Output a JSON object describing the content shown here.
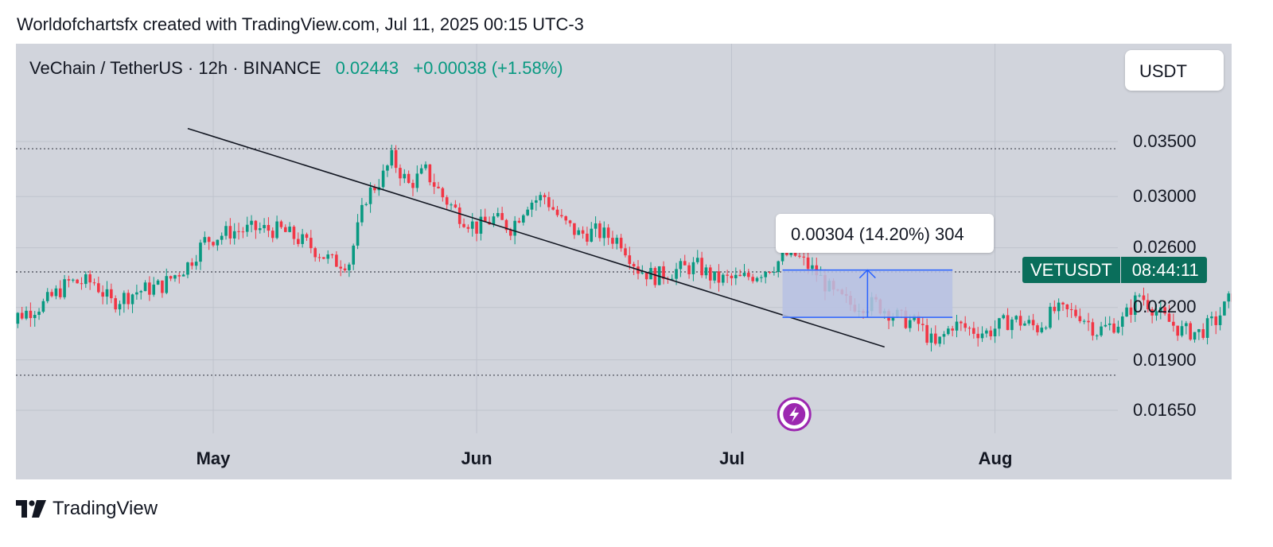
{
  "header": {
    "attribution": "Worldofchartsfx created with TradingView.com, Jul 11, 2025 00:15 UTC-3"
  },
  "legend": {
    "symbol": "VeChain / TetherUS · 12h · BINANCE",
    "last_price": "0.02443",
    "change": "+0.00038 (+1.58%)"
  },
  "currency_button": {
    "label": "USDT"
  },
  "symbol_tag": {
    "name": "VETUSDT",
    "countdown": "08:44:11"
  },
  "measure": {
    "label": "0.00304 (14.20%) 304"
  },
  "footer": {
    "brand": "TradingView"
  },
  "colors": {
    "up": "#089981",
    "down": "#f23645",
    "panel": "#d1d4dc",
    "measure_fill": "#b7c1e3",
    "measure_line": "#2962ff",
    "trendline": "#131722"
  },
  "icons": [
    "lightning-icon",
    "tradingview-logo-icon"
  ],
  "chart_data": {
    "type": "candlestick",
    "timeframe": "12h",
    "x_ticks": [
      "May",
      "Jun",
      "Jul",
      "Aug"
    ],
    "y_ticks": [
      "0.03500",
      "0.03000",
      "0.02600",
      "0.02200",
      "0.01900",
      "0.01650"
    ],
    "y_scale": "log",
    "ylim": [
      0.0156,
      0.0395
    ],
    "horizontal_levels": [
      0.0343,
      0.0243,
      0.0182
    ],
    "trendline": {
      "start": [
        "2025-04-28",
        0.0363
      ],
      "end": [
        "2025-07-19",
        0.0197
      ]
    },
    "measure_range": {
      "from": 0.0214,
      "to": 0.02443,
      "start_date": "2025-07-07",
      "end_date": "2025-07-27"
    },
    "grid": true,
    "close_path": [
      [
        "2025-04-06",
        0.02
      ],
      [
        "2025-04-08",
        0.0215
      ],
      [
        "2025-04-11",
        0.0222
      ],
      [
        "2025-04-14",
        0.0236
      ],
      [
        "2025-04-17",
        0.0236
      ],
      [
        "2025-04-19",
        0.0223
      ],
      [
        "2025-04-22",
        0.023
      ],
      [
        "2025-04-25",
        0.0234
      ],
      [
        "2025-04-28",
        0.0248
      ],
      [
        "2025-04-30",
        0.0265
      ],
      [
        "2025-05-03",
        0.0272
      ],
      [
        "2025-05-06",
        0.0274
      ],
      [
        "2025-05-09",
        0.0273
      ],
      [
        "2025-05-12",
        0.0263
      ],
      [
        "2025-05-15",
        0.025
      ],
      [
        "2025-05-17",
        0.025
      ],
      [
        "2025-05-19",
        0.03
      ],
      [
        "2025-05-21",
        0.0318
      ],
      [
        "2025-05-22",
        0.0334
      ],
      [
        "2025-05-24",
        0.031
      ],
      [
        "2025-05-26",
        0.0322
      ],
      [
        "2025-05-28",
        0.03
      ],
      [
        "2025-05-30",
        0.0285
      ],
      [
        "2025-06-01",
        0.0275
      ],
      [
        "2025-06-03",
        0.0282
      ],
      [
        "2025-06-05",
        0.0275
      ],
      [
        "2025-06-07",
        0.0295
      ],
      [
        "2025-06-09",
        0.03
      ],
      [
        "2025-06-11",
        0.028
      ],
      [
        "2025-06-13",
        0.027
      ],
      [
        "2025-06-15",
        0.0272
      ],
      [
        "2025-06-18",
        0.0265
      ],
      [
        "2025-06-20",
        0.0245
      ],
      [
        "2025-06-22",
        0.024
      ],
      [
        "2025-06-25",
        0.0245
      ],
      [
        "2025-06-27",
        0.0247
      ],
      [
        "2025-06-29",
        0.0238
      ],
      [
        "2025-07-02",
        0.0238
      ],
      [
        "2025-07-04",
        0.0242
      ],
      [
        "2025-07-06",
        0.0248
      ],
      [
        "2025-07-08",
        0.0257
      ],
      [
        "2025-07-11",
        0.0242
      ],
      [
        "2025-07-13",
        0.0228
      ],
      [
        "2025-07-15",
        0.0222
      ],
      [
        "2025-07-18",
        0.0222
      ],
      [
        "2025-07-21",
        0.0213
      ],
      [
        "2025-07-23",
        0.021
      ],
      [
        "2025-07-25",
        0.0197
      ],
      [
        "2025-07-27",
        0.021
      ],
      [
        "2025-07-29",
        0.0207
      ],
      [
        "2025-07-31",
        0.0205
      ],
      [
        "2025-08-03",
        0.0213
      ],
      [
        "2025-08-06",
        0.0208
      ],
      [
        "2025-08-08",
        0.0218
      ],
      [
        "2025-08-11",
        0.0216
      ],
      [
        "2025-08-13",
        0.0206
      ],
      [
        "2025-08-16",
        0.0212
      ],
      [
        "2025-08-18",
        0.0228
      ],
      [
        "2025-08-21",
        0.0213
      ],
      [
        "2025-08-23",
        0.0206
      ],
      [
        "2025-08-25",
        0.0205
      ],
      [
        "2025-08-27",
        0.0212
      ],
      [
        "2025-08-29",
        0.0228
      ],
      [
        "2025-08-30",
        0.0244
      ]
    ]
  }
}
